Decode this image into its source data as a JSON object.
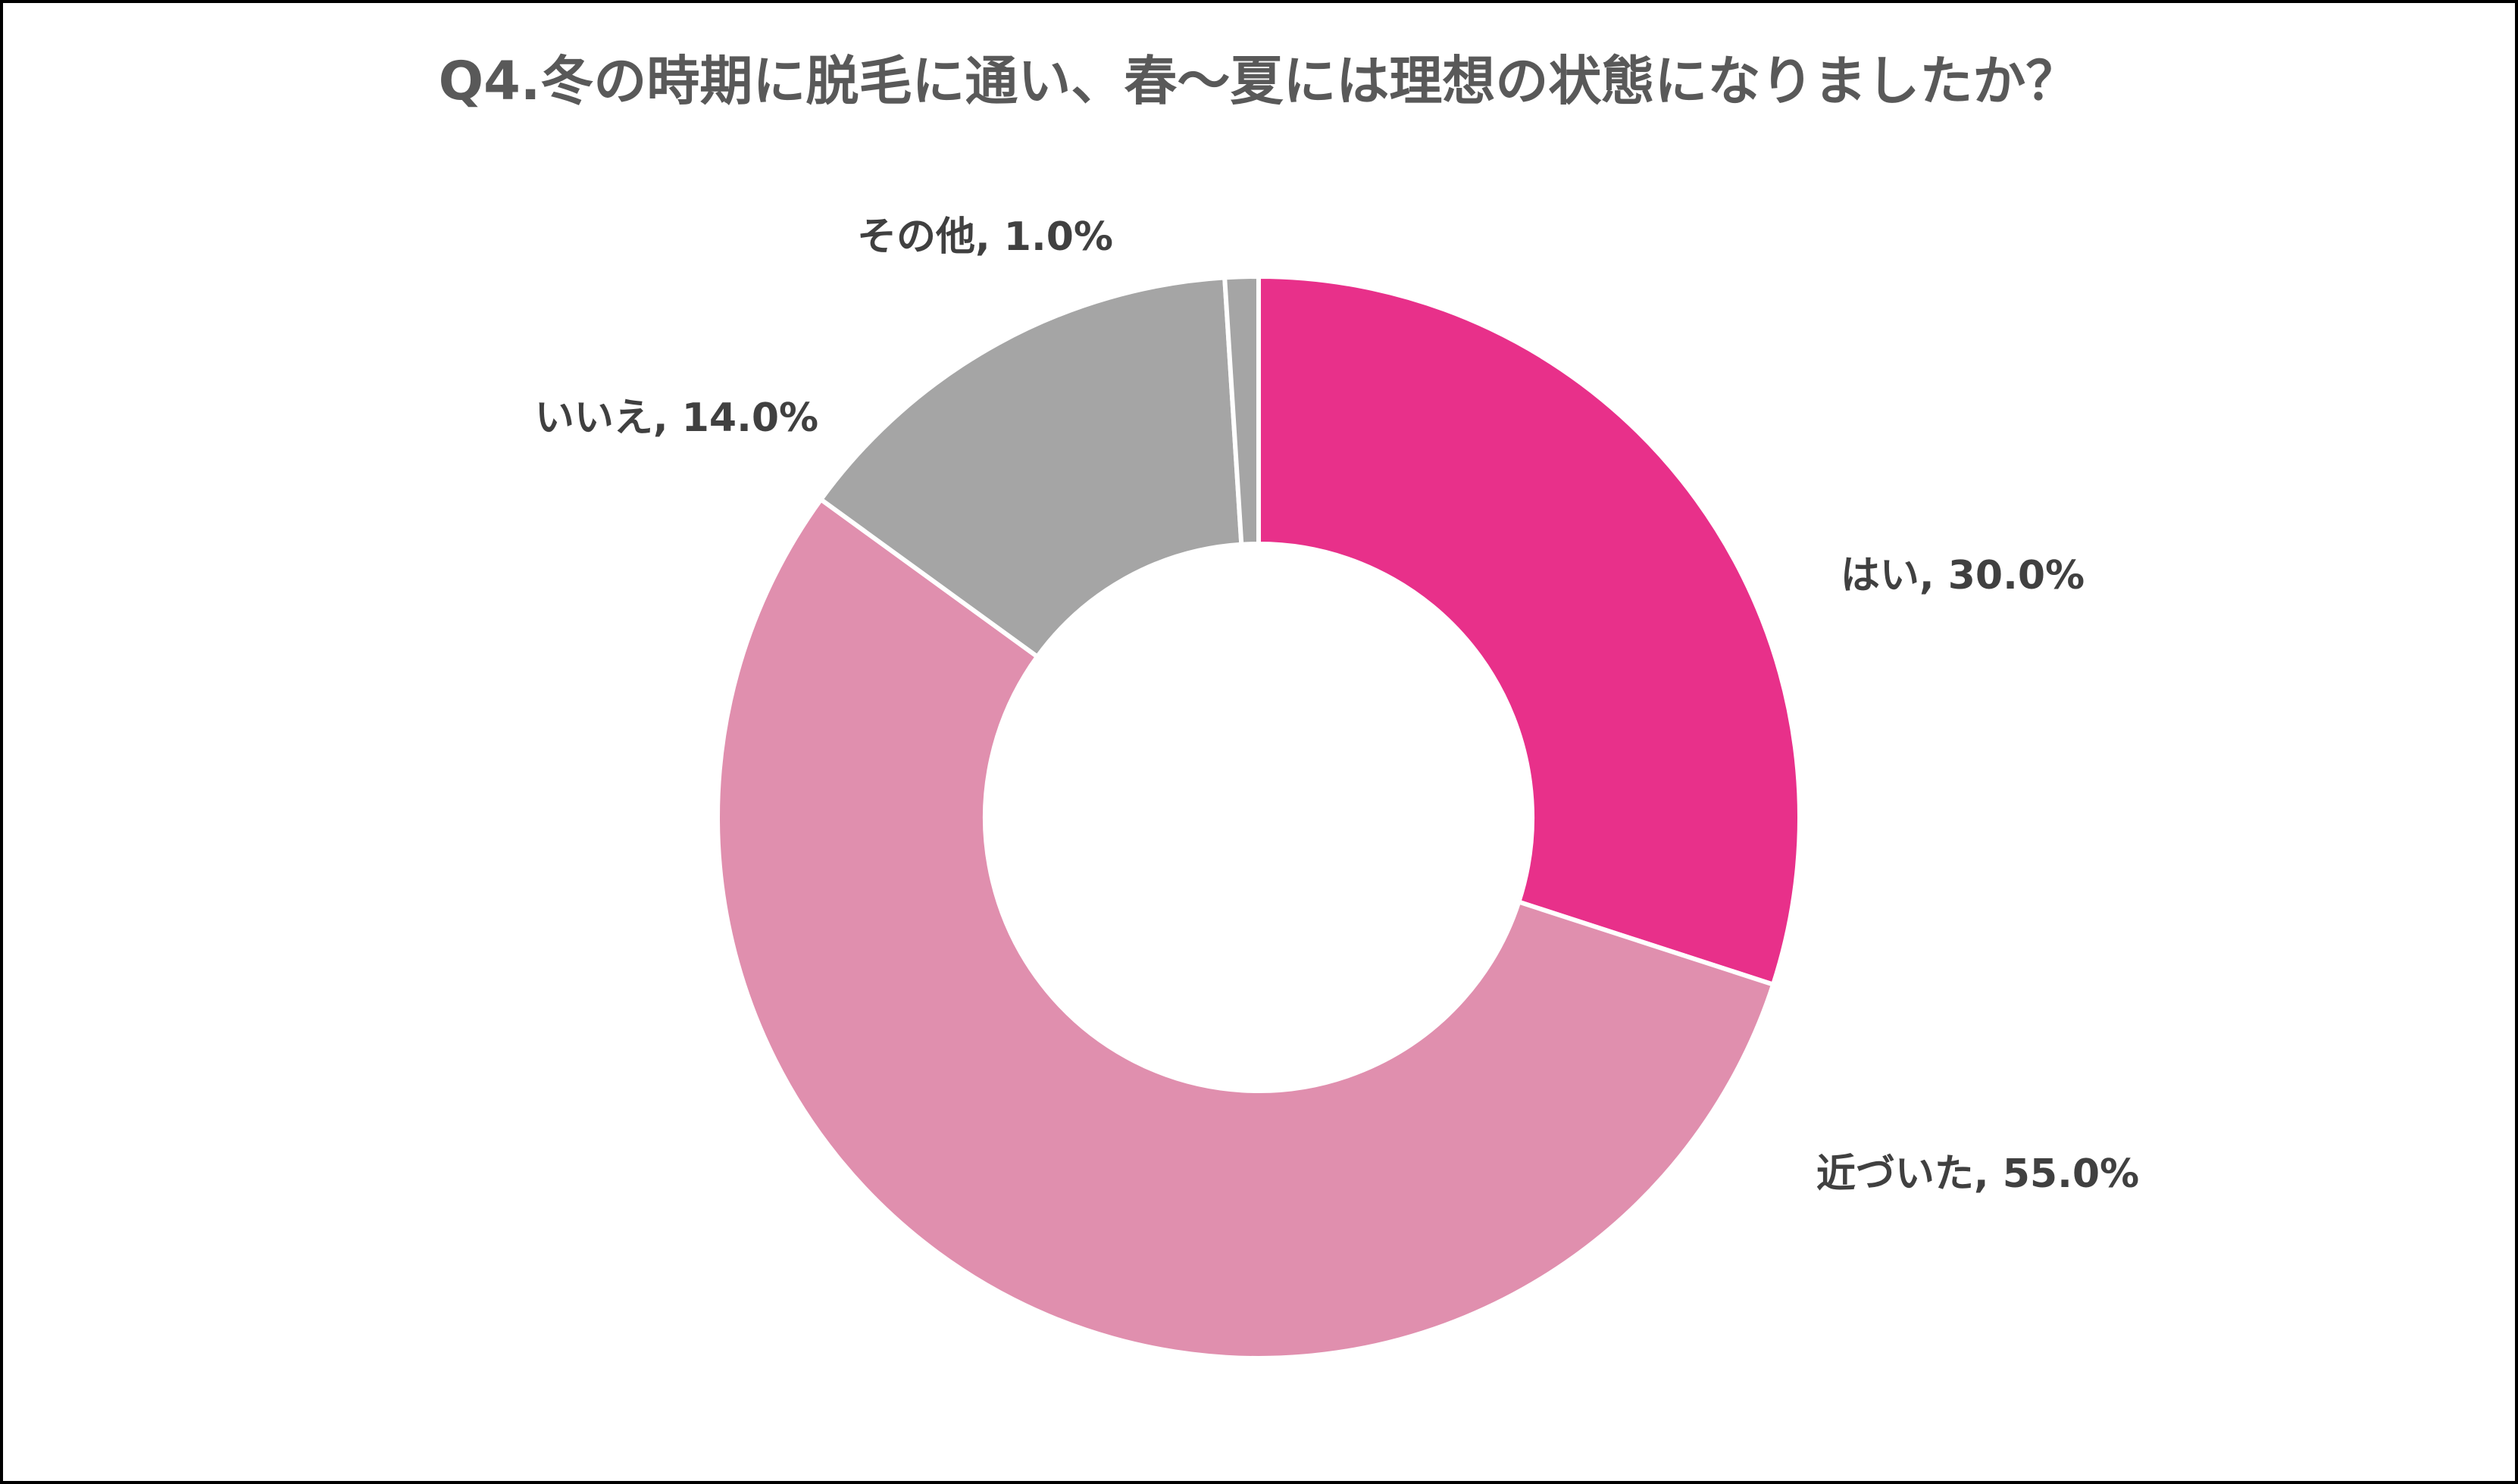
{
  "chart_data": {
    "type": "donut",
    "title": "Q4.冬の時期に脱毛に通い、春～夏には理想の状態になりましたか？",
    "values": [
      30,
      55,
      14,
      1
    ],
    "value_labels": [
      "はい, 30.0%",
      "近づいた, 55.0%",
      "いいえ, 14.0%",
      "その他, 1.0%"
    ],
    "colors": [
      "#e8308a",
      "#e08fae",
      "#a5a5a5",
      "#a5a5a5"
    ]
  }
}
